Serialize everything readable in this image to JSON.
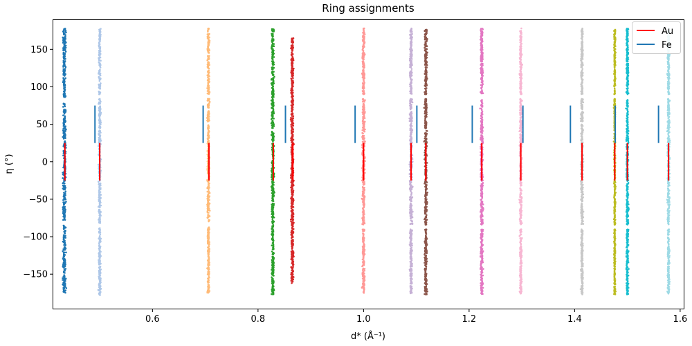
{
  "chart_data": {
    "type": "scatter",
    "title": "Ring assignments",
    "xlabel": "d* (Å⁻¹)",
    "ylabel": "η (°)",
    "xlim": [
      0.412,
      1.608
    ],
    "ylim": [
      -196,
      190
    ],
    "xticks": [
      0.6,
      0.8,
      1.0,
      1.2,
      1.4,
      1.6
    ],
    "yticks": [
      -150,
      -100,
      -50,
      0,
      50,
      100,
      150
    ],
    "grid": false,
    "legend_placement": "top-right",
    "rings": [
      {
        "d": 0.433,
        "width": 0.008,
        "color": "#1f77b4",
        "eta_min": -175,
        "eta_max": 178,
        "gaps": [
          [
            -85,
            -78
          ],
          [
            78,
            86
          ]
        ]
      },
      {
        "d": 0.5,
        "width": 0.006,
        "color": "#aec7e8",
        "eta_min": -178,
        "eta_max": 178,
        "gaps": [
          [
            -88,
            -82
          ],
          [
            84,
            90
          ]
        ]
      },
      {
        "d": 0.706,
        "width": 0.006,
        "color": "#ffbb78",
        "eta_min": -175,
        "eta_max": 178,
        "gaps": [
          [
            -86,
            -80
          ],
          [
            84,
            90
          ]
        ]
      },
      {
        "d": 0.828,
        "width": 0.007,
        "color": "#2ca02c",
        "eta_min": -177,
        "eta_max": 178,
        "gaps": []
      },
      {
        "d": 0.865,
        "width": 0.007,
        "color": "#d62728",
        "eta_min": -162,
        "eta_max": 165,
        "gaps": []
      },
      {
        "d": 1.0,
        "width": 0.007,
        "color": "#ff9896",
        "eta_min": -175,
        "eta_max": 178,
        "gaps": [
          [
            -90,
            -84
          ],
          [
            84,
            90
          ]
        ]
      },
      {
        "d": 1.09,
        "width": 0.007,
        "color": "#c5b0d5",
        "eta_min": -177,
        "eta_max": 178,
        "gaps": [
          [
            -90,
            -84
          ],
          [
            84,
            90
          ]
        ]
      },
      {
        "d": 1.118,
        "width": 0.007,
        "color": "#8c564b",
        "eta_min": -177,
        "eta_max": 178,
        "gaps": [
          [
            -90,
            -84
          ],
          [
            84,
            90
          ]
        ]
      },
      {
        "d": 1.224,
        "width": 0.007,
        "color": "#e377c2",
        "eta_min": -177,
        "eta_max": 178,
        "gaps": [
          [
            -90,
            -84
          ],
          [
            84,
            90
          ]
        ]
      },
      {
        "d": 1.298,
        "width": 0.006,
        "color": "#f7b6d2",
        "eta_min": -177,
        "eta_max": 178,
        "gaps": [
          [
            -90,
            -84
          ],
          [
            84,
            90
          ]
        ]
      },
      {
        "d": 1.414,
        "width": 0.006,
        "color": "#c7c7c7",
        "eta_min": -177,
        "eta_max": 178,
        "gaps": [
          [
            -90,
            -84
          ],
          [
            84,
            90
          ]
        ]
      },
      {
        "d": 1.476,
        "width": 0.004,
        "color": "#bcbd22",
        "eta_min": -177,
        "eta_max": 178,
        "gaps": [
          [
            -90,
            -84
          ],
          [
            84,
            90
          ]
        ]
      },
      {
        "d": 1.5,
        "width": 0.006,
        "color": "#17becf",
        "eta_min": -177,
        "eta_max": 178,
        "gaps": [
          [
            -90,
            -84
          ],
          [
            84,
            90
          ]
        ]
      },
      {
        "d": 1.578,
        "width": 0.006,
        "color": "#9edae5",
        "eta_min": -177,
        "eta_max": 178,
        "gaps": [
          [
            -90,
            -84
          ],
          [
            84,
            90
          ]
        ]
      }
    ],
    "series": [
      {
        "name": "Au",
        "color": "#ff0000",
        "eta_range": [
          -25,
          25
        ],
        "d_values": [
          0.434,
          0.5,
          0.707,
          0.829,
          0.866,
          1.0,
          1.09,
          1.118,
          1.224,
          1.298,
          1.414,
          1.476,
          1.5,
          1.578
        ]
      },
      {
        "name": "Fe",
        "color": "#1f77b4",
        "eta_range": [
          25,
          75
        ],
        "d_values": [
          0.491,
          0.696,
          0.852,
          0.984,
          1.101,
          1.206,
          1.302,
          1.392,
          1.477,
          1.559
        ]
      }
    ]
  }
}
